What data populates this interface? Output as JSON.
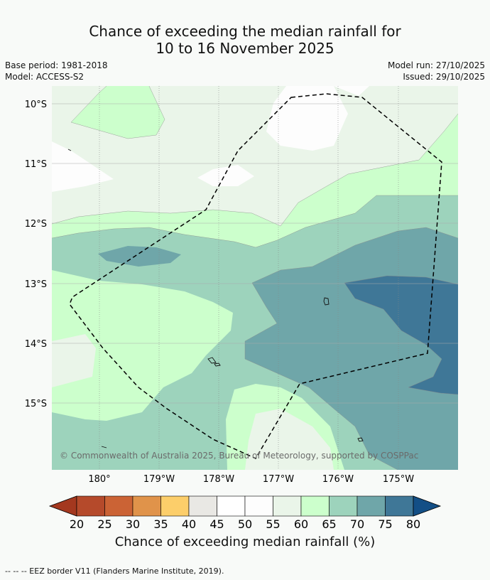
{
  "title": {
    "line1": "Chance of exceeding the median rainfall for",
    "line2": "10 to 16 November 2025"
  },
  "meta": {
    "base_period": "Base period: 1981-2018",
    "model": "Model: ACCESS-S2",
    "model_run": "Model run: 27/10/2025",
    "issued": "Issued: 29/10/2025"
  },
  "map": {
    "lat_labels": [
      "10°S",
      "11°S",
      "12°S",
      "13°S",
      "14°S",
      "15°S"
    ],
    "lon_labels": [
      "180°",
      "179°W",
      "178°W",
      "177°W",
      "176°W",
      "175°W"
    ],
    "copyright": "© Commonwealth of Australia 2025, Bureau of Meteorology, supported by COSPPac"
  },
  "colorbar": {
    "ticks": [
      "20",
      "25",
      "30",
      "35",
      "40",
      "45",
      "50",
      "55",
      "60",
      "65",
      "70",
      "75",
      "80"
    ],
    "colors": [
      "#a4381f",
      "#b54a2b",
      "#cb6335",
      "#e0934a",
      "#fcce6a",
      "#e9e8e4",
      "#ffffff",
      "#fdfdfd",
      "#eaf5e9",
      "#ccffcc",
      "#9dd3bc",
      "#6fa6a9",
      "#3f7797",
      "#134f86"
    ],
    "title": "Chance of exceeding median rainfall (%)"
  },
  "footer": "--  --  -- EEZ border V11 (Flanders Marine Institute, 2019)."
}
